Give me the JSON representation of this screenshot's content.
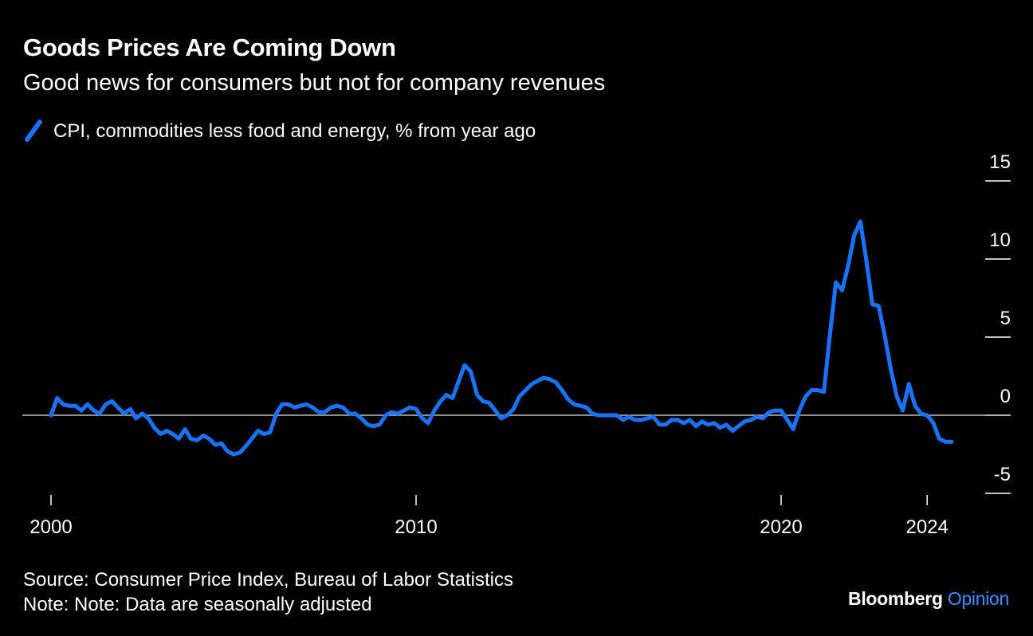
{
  "header": {
    "title": "Goods Prices Are Coming Down",
    "subtitle": "Good news for consumers but not for company revenues"
  },
  "legend": {
    "label": "CPI, commodities less food and energy, % from year ago",
    "icon": "line-swatch-icon"
  },
  "footer": {
    "source": "Source: Consumer Price Index, Bureau of Labor Statistics",
    "note": "Note: Note: Data are seasonally adjusted",
    "brand_main": "Bloomberg",
    "brand_accent": "Opinion"
  },
  "colors": {
    "background": "#000000",
    "line": "#1a73ff",
    "zero_line": "#bfbfbf",
    "brand_accent": "#3f8cff"
  },
  "chart_data": {
    "type": "line",
    "series": [
      {
        "name": "CPI, commodities less food and energy, % from year ago",
        "points": [
          [
            2000.0,
            0.0
          ],
          [
            2000.17,
            1.1
          ],
          [
            2000.33,
            0.7
          ],
          [
            2000.5,
            0.6
          ],
          [
            2000.67,
            0.6
          ],
          [
            2000.83,
            0.3
          ],
          [
            2001.0,
            0.7
          ],
          [
            2001.17,
            0.3
          ],
          [
            2001.33,
            0.1
          ],
          [
            2001.5,
            0.7
          ],
          [
            2001.67,
            0.9
          ],
          [
            2001.83,
            0.5
          ],
          [
            2002.0,
            0.1
          ],
          [
            2002.17,
            0.4
          ],
          [
            2002.33,
            -0.2
          ],
          [
            2002.5,
            0.1
          ],
          [
            2002.67,
            -0.2
          ],
          [
            2002.83,
            -0.8
          ],
          [
            2003.0,
            -1.2
          ],
          [
            2003.17,
            -1.0
          ],
          [
            2003.33,
            -1.2
          ],
          [
            2003.5,
            -1.5
          ],
          [
            2003.67,
            -0.9
          ],
          [
            2003.83,
            -1.5
          ],
          [
            2004.0,
            -1.6
          ],
          [
            2004.17,
            -1.3
          ],
          [
            2004.33,
            -1.5
          ],
          [
            2004.5,
            -1.9
          ],
          [
            2004.67,
            -1.8
          ],
          [
            2004.83,
            -2.3
          ],
          [
            2005.0,
            -2.5
          ],
          [
            2005.17,
            -2.4
          ],
          [
            2005.33,
            -2.0
          ],
          [
            2005.5,
            -1.5
          ],
          [
            2005.67,
            -1.0
          ],
          [
            2005.83,
            -1.2
          ],
          [
            2006.0,
            -1.1
          ],
          [
            2006.17,
            0.1
          ],
          [
            2006.33,
            0.7
          ],
          [
            2006.5,
            0.7
          ],
          [
            2006.67,
            0.5
          ],
          [
            2006.83,
            0.6
          ],
          [
            2007.0,
            0.7
          ],
          [
            2007.17,
            0.5
          ],
          [
            2007.33,
            0.2
          ],
          [
            2007.5,
            0.2
          ],
          [
            2007.67,
            0.5
          ],
          [
            2007.83,
            0.6
          ],
          [
            2008.0,
            0.5
          ],
          [
            2008.17,
            0.1
          ],
          [
            2008.33,
            0.1
          ],
          [
            2008.5,
            -0.2
          ],
          [
            2008.67,
            -0.6
          ],
          [
            2008.83,
            -0.7
          ],
          [
            2009.0,
            -0.6
          ],
          [
            2009.17,
            0.0
          ],
          [
            2009.33,
            0.2
          ],
          [
            2009.5,
            0.1
          ],
          [
            2009.67,
            0.3
          ],
          [
            2009.83,
            0.5
          ],
          [
            2010.0,
            0.4
          ],
          [
            2010.17,
            -0.2
          ],
          [
            2010.33,
            -0.5
          ],
          [
            2010.5,
            0.3
          ],
          [
            2010.67,
            0.9
          ],
          [
            2010.83,
            1.3
          ],
          [
            2011.0,
            1.1
          ],
          [
            2011.17,
            2.2
          ],
          [
            2011.33,
            3.2
          ],
          [
            2011.5,
            2.8
          ],
          [
            2011.67,
            1.3
          ],
          [
            2011.83,
            0.9
          ],
          [
            2012.0,
            0.8
          ],
          [
            2012.17,
            0.3
          ],
          [
            2012.33,
            -0.2
          ],
          [
            2012.5,
            0.0
          ],
          [
            2012.67,
            0.4
          ],
          [
            2012.83,
            1.2
          ],
          [
            2013.0,
            1.6
          ],
          [
            2013.17,
            2.0
          ],
          [
            2013.33,
            2.2
          ],
          [
            2013.5,
            2.4
          ],
          [
            2013.67,
            2.3
          ],
          [
            2013.83,
            2.1
          ],
          [
            2014.0,
            1.6
          ],
          [
            2014.17,
            1.0
          ],
          [
            2014.33,
            0.7
          ],
          [
            2014.5,
            0.6
          ],
          [
            2014.67,
            0.5
          ],
          [
            2014.83,
            0.1
          ],
          [
            2015.0,
            0.0
          ],
          [
            2015.17,
            0.0
          ],
          [
            2015.33,
            0.0
          ],
          [
            2015.5,
            0.0
          ],
          [
            2015.67,
            -0.3
          ],
          [
            2015.83,
            -0.1
          ],
          [
            2016.0,
            -0.3
          ],
          [
            2016.17,
            -0.3
          ],
          [
            2016.33,
            -0.2
          ],
          [
            2016.5,
            -0.1
          ],
          [
            2016.67,
            -0.6
          ],
          [
            2016.83,
            -0.6
          ],
          [
            2017.0,
            -0.3
          ],
          [
            2017.17,
            -0.3
          ],
          [
            2017.33,
            -0.5
          ],
          [
            2017.5,
            -0.3
          ],
          [
            2017.67,
            -0.7
          ],
          [
            2017.83,
            -0.4
          ],
          [
            2018.0,
            -0.6
          ],
          [
            2018.17,
            -0.5
          ],
          [
            2018.33,
            -0.8
          ],
          [
            2018.5,
            -0.6
          ],
          [
            2018.67,
            -1.0
          ],
          [
            2018.83,
            -0.7
          ],
          [
            2019.0,
            -0.4
          ],
          [
            2019.17,
            -0.3
          ],
          [
            2019.33,
            -0.1
          ],
          [
            2019.5,
            -0.2
          ],
          [
            2019.67,
            0.2
          ],
          [
            2019.83,
            0.3
          ],
          [
            2020.0,
            0.3
          ],
          [
            2020.17,
            -0.3
          ],
          [
            2020.33,
            -0.9
          ],
          [
            2020.5,
            0.3
          ],
          [
            2020.67,
            1.2
          ],
          [
            2020.83,
            1.6
          ],
          [
            2021.0,
            1.6
          ],
          [
            2021.17,
            1.5
          ],
          [
            2021.33,
            5.0
          ],
          [
            2021.5,
            8.5
          ],
          [
            2021.67,
            8.0
          ],
          [
            2021.83,
            9.5
          ],
          [
            2022.0,
            11.5
          ],
          [
            2022.17,
            12.4
          ],
          [
            2022.33,
            10.0
          ],
          [
            2022.5,
            7.1
          ],
          [
            2022.67,
            7.0
          ],
          [
            2022.83,
            5.2
          ],
          [
            2023.0,
            3.0
          ],
          [
            2023.17,
            1.2
          ],
          [
            2023.33,
            0.3
          ],
          [
            2023.5,
            2.0
          ],
          [
            2023.67,
            0.6
          ],
          [
            2023.83,
            0.1
          ],
          [
            2024.0,
            0.0
          ],
          [
            2024.17,
            -0.5
          ],
          [
            2024.33,
            -1.5
          ],
          [
            2024.5,
            -1.7
          ],
          [
            2024.67,
            -1.7
          ]
        ]
      }
    ],
    "x_ticks": [
      {
        "value": 2000,
        "label": "2000"
      },
      {
        "value": 2010,
        "label": "2010"
      },
      {
        "value": 2020,
        "label": "2020"
      },
      {
        "value": 2024,
        "label": "2024"
      }
    ],
    "y_ticks": [
      {
        "value": 15,
        "label": "15"
      },
      {
        "value": 10,
        "label": "10"
      },
      {
        "value": 5,
        "label": "5"
      },
      {
        "value": 0,
        "label": "0"
      },
      {
        "value": -5,
        "label": "-5"
      }
    ],
    "xlim": [
      2000,
      2024.5
    ],
    "ylim": [
      -5,
      15
    ],
    "baseline": 0,
    "grid": false,
    "y_axis_side": "right",
    "legend_position": "top-left"
  }
}
